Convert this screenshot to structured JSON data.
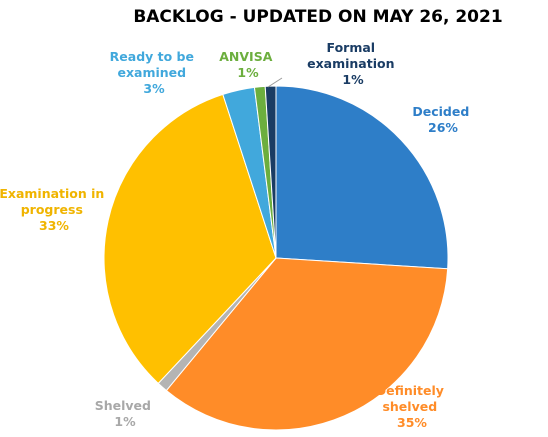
{
  "chart_data": {
    "type": "pie",
    "title": "BACKLOG - UPDATED ON MAY 26, 2021",
    "start_angle_deg": 0,
    "direction": "clockwise",
    "slices": [
      {
        "name": "Decided",
        "value": 26,
        "value_label": "26%",
        "color": "#2e7ec8",
        "label_color": "#2e7ec8"
      },
      {
        "name": "Definitely shelved",
        "value": 35,
        "value_label": "35%",
        "color": "#ff8c28",
        "label_color": "#ff8c28"
      },
      {
        "name": "Shelved",
        "value": 1,
        "value_label": "1%",
        "color": "#b4b4b4",
        "label_color": "#a8a8a8"
      },
      {
        "name": "Examination in progress",
        "value": 33,
        "value_label": "33%",
        "color": "#ffc000",
        "label_color": "#f0b400"
      },
      {
        "name": "Ready to be examined",
        "value": 3,
        "value_label": "3%",
        "color": "#41a8dc",
        "label_color": "#41a8dc"
      },
      {
        "name": "ANVISA",
        "value": 1,
        "value_label": "1%",
        "color": "#6cae3e",
        "label_color": "#6cae3e"
      },
      {
        "name": "Formal examination",
        "value": 1,
        "value_label": "1%",
        "color": "#1a3c64",
        "label_color": "#1a3c64"
      }
    ]
  }
}
